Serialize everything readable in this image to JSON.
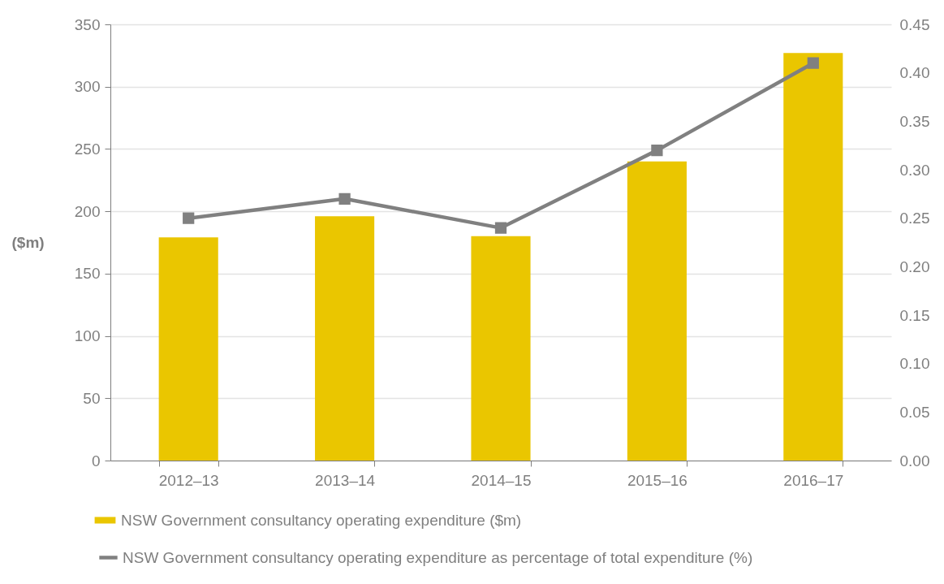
{
  "chart_data": {
    "type": "bar",
    "ylabel": "($m)",
    "categories": [
      "2012–13",
      "2013–14",
      "2014–15",
      "2015–16",
      "2016–17"
    ],
    "series": [
      {
        "name": "NSW Government consultancy operating expenditure ($m)",
        "color": "#eac600",
        "values": [
          179,
          196,
          180,
          240,
          327
        ]
      },
      {
        "name": "NSW Government consultancy operating expenditure as percentage of total expenditure (%)",
        "type": "line",
        "axis": "y2",
        "color": "#808080",
        "values": [
          0.25,
          0.27,
          0.24,
          0.32,
          0.41
        ]
      }
    ],
    "ylim": [
      0,
      350
    ],
    "yticks": [
      0,
      50,
      100,
      150,
      200,
      250,
      300,
      350
    ],
    "y2lim": [
      0,
      0.45
    ],
    "y2ticks": [
      {
        "value": 0,
        "label": "0.00"
      },
      {
        "value": 0.05,
        "label": "0.05"
      },
      {
        "value": 0.1,
        "label": "0.10"
      },
      {
        "value": 0.15,
        "label": "0.15"
      },
      {
        "value": 0.2,
        "label": "0.20"
      },
      {
        "value": 0.25,
        "label": "0.25"
      },
      {
        "value": 0.3,
        "label": "0.30"
      },
      {
        "value": 0.35,
        "label": "0.35"
      },
      {
        "value": 0.4,
        "label": "0.40"
      },
      {
        "value": 0.45,
        "label": "0.45"
      }
    ],
    "grid": "y",
    "legend": "bottom",
    "marker": "square"
  }
}
